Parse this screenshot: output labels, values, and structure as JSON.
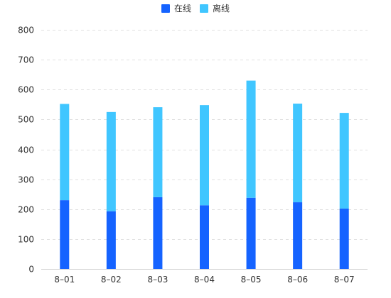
{
  "chart_data": {
    "type": "bar",
    "stacked": true,
    "categories": [
      "8–01",
      "8–02",
      "8–03",
      "8–04",
      "8–05",
      "8–06",
      "8–07"
    ],
    "series": [
      {
        "name": "在线",
        "values": [
          230,
          193,
          240,
          213,
          238,
          223,
          202
        ],
        "color": "#1563FF"
      },
      {
        "name": "离线",
        "values": [
          322,
          332,
          301,
          335,
          392,
          330,
          320
        ],
        "color": "#40C6FF"
      }
    ],
    "y_ticks": [
      0,
      100,
      200,
      300,
      400,
      500,
      600,
      700,
      800
    ],
    "ylim": [
      0,
      800
    ],
    "grid": true,
    "grid_style": "dashed",
    "legend_position": "top-center"
  }
}
